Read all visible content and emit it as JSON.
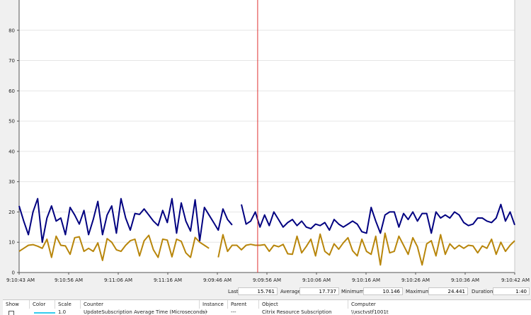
{
  "chart_data": {
    "type": "line",
    "y_ticks": [
      "0",
      "10",
      "20",
      "30",
      "40",
      "50",
      "60",
      "70",
      "80"
    ],
    "ylim": [
      0,
      90
    ],
    "x_tick_labels": [
      "9:10:43 AM",
      "9:10:56 AM",
      "9:11:06 AM",
      "9:11:16 AM",
      "9:09:46 AM",
      "9:09:56 AM",
      "9:10:06 AM",
      "9:10:16 AM",
      "9:10:26 AM",
      "9:10:36 AM",
      "9:10:42 AM"
    ],
    "cursor_sample_index": 52,
    "grid": "horizontal",
    "series": [
      {
        "color": "#000080",
        "values": [
          22,
          17,
          12.5,
          20,
          24.4,
          10,
          18,
          22,
          17,
          18,
          12.5,
          21.5,
          19,
          16,
          20.5,
          12.5,
          17.5,
          23.5,
          12.5,
          19,
          22,
          13,
          24.4,
          18,
          14,
          19.5,
          19.2,
          21,
          19,
          17,
          15.5,
          20.5,
          16.5,
          24.4,
          13,
          23,
          17,
          13.7,
          24,
          10.5,
          21.5,
          19,
          16.5,
          14,
          21,
          17.5,
          15.7,
          null,
          22.5,
          16,
          17,
          20,
          15,
          19,
          15.5,
          20,
          17.5,
          15,
          16.5,
          17.5,
          15.5,
          17,
          15,
          14.5,
          16,
          15.5,
          16.5,
          14,
          17.5,
          16,
          15,
          16,
          17,
          16,
          13.5,
          13,
          21.5,
          17,
          13,
          19,
          20,
          20,
          15,
          19.5,
          17.5,
          20,
          17,
          19.5,
          19.5,
          13,
          20,
          18,
          19,
          18,
          20,
          19,
          16.5,
          15.5,
          16,
          18,
          18,
          17,
          16.5,
          18,
          22.5,
          17,
          20,
          15.7
        ]
      },
      {
        "color": "#b8860b",
        "values": [
          7,
          8,
          9,
          9.2,
          8.7,
          8,
          11,
          5,
          12,
          9,
          8.8,
          6,
          11.5,
          11.8,
          7,
          8,
          7,
          9.8,
          4,
          11.2,
          10,
          7.5,
          7,
          9,
          10.5,
          11,
          5.5,
          10.5,
          12.3,
          7.5,
          5,
          11,
          10.7,
          5.2,
          11,
          10.3,
          6.5,
          5,
          11.6,
          10,
          9,
          8,
          null,
          5,
          12.5,
          7,
          9,
          9,
          7.5,
          9,
          9.3,
          9,
          9,
          9.2,
          7,
          9,
          8.5,
          9.3,
          6.2,
          6,
          12,
          6.5,
          8.6,
          11,
          5.5,
          12.7,
          7,
          5.8,
          9.5,
          7.7,
          9.8,
          11.5,
          7.2,
          5.5,
          11,
          7,
          6,
          12,
          2.5,
          13,
          6.5,
          7,
          12,
          9,
          6,
          11.5,
          8.5,
          2.5,
          9.5,
          10.5,
          5.5,
          12.5,
          6,
          9.5,
          7.8,
          9,
          8,
          9,
          8.8,
          6.5,
          8.8,
          8,
          11,
          6,
          10,
          7,
          9,
          10.5
        ]
      }
    ]
  },
  "stats": {
    "last_label": "Last",
    "last_value": "15.761",
    "average_label": "Average",
    "average_value": "17.737",
    "minimum_label": "Minimum",
    "minimum_value": "10.146",
    "maximum_label": "Maximum",
    "maximum_value": "24.441",
    "duration_label": "Duration",
    "duration_value": "1:40"
  },
  "table": {
    "headers": {
      "show": "Show",
      "color": "Color",
      "scale": "Scale",
      "counter": "Counter",
      "instance": "Instance",
      "parent": "Parent",
      "object": "Object",
      "computer": "Computer"
    },
    "row": {
      "color": "#33ccee",
      "scale": "1.0",
      "counter": "UpdateSubscription Average Time (Microseconds)",
      "instance": "---",
      "parent": "---",
      "object": "Citrix Resource Subscription",
      "computer": "\\\\xsctvstf1001t"
    }
  }
}
